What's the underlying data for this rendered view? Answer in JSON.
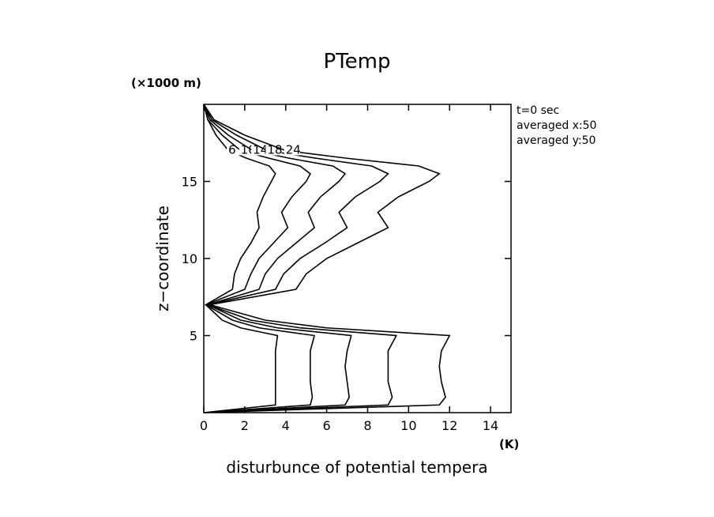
{
  "chart_data": {
    "type": "line",
    "title": "PTemp",
    "x_label": "disturbunce of potential tempera",
    "x_unit": "(K)",
    "y_label": "z−coordinate",
    "y_unit": "(×1000 m)",
    "annotations": [
      "t=0 sec",
      "averaged  x:50",
      "averaged  y:50"
    ],
    "z": [
      0,
      0.5,
      1,
      2,
      3,
      4,
      5,
      5.5,
      6,
      7,
      8,
      9,
      10,
      11,
      12,
      13,
      14,
      15,
      15.5,
      16,
      16.5,
      17,
      18,
      19,
      20
    ],
    "series": [
      {
        "name": "6",
        "color": "#000000",
        "values": [
          0,
          3.5,
          3.5,
          3.5,
          3.5,
          3.5,
          3.6,
          1.8,
          0.9,
          0.1,
          1.4,
          1.5,
          1.8,
          2.3,
          2.7,
          2.6,
          2.9,
          3.3,
          3.5,
          3.2,
          2.1,
          1.2,
          0.6,
          0.2,
          0
        ]
      },
      {
        "name": "10",
        "color": "#000000",
        "values": [
          0,
          5.2,
          5.3,
          5.2,
          5.2,
          5.2,
          5.4,
          2.7,
          1.4,
          0.1,
          2,
          2.3,
          2.7,
          3.4,
          4.1,
          3.8,
          4.3,
          5,
          5.2,
          4.7,
          3.2,
          1.8,
          0.9,
          0.2,
          0
        ]
      },
      {
        "name": "14",
        "color": "#000000",
        "values": [
          0,
          6.9,
          7.1,
          7,
          6.9,
          7,
          7.2,
          3.6,
          1.8,
          0.2,
          2.7,
          3,
          3.6,
          4.5,
          5.4,
          5.1,
          5.7,
          6.6,
          6.9,
          6.3,
          4.2,
          2.4,
          1.2,
          0.3,
          0
        ]
      },
      {
        "name": "18",
        "color": "#000000",
        "values": [
          0,
          9,
          9.2,
          9,
          9,
          9,
          9.4,
          4.7,
          2.3,
          0.2,
          3.5,
          3.9,
          4.7,
          5.9,
          7,
          6.6,
          7.4,
          8.6,
          9,
          8.2,
          5.5,
          3.1,
          1.6,
          0.4,
          0
        ]
      },
      {
        "name": "24",
        "color": "#000000",
        "values": [
          0,
          11.5,
          11.8,
          11.6,
          11.5,
          11.6,
          12,
          6,
          3,
          0.3,
          4.5,
          5,
          6,
          7.5,
          9,
          8.5,
          9.5,
          11,
          11.5,
          10.5,
          7,
          4,
          2,
          0.5,
          0
        ]
      }
    ],
    "xlim": [
      0,
      15
    ],
    "xticks": [
      0,
      2,
      4,
      6,
      8,
      10,
      12,
      14
    ],
    "ylim": [
      0,
      20
    ],
    "yticks": [
      5,
      10,
      15
    ]
  }
}
